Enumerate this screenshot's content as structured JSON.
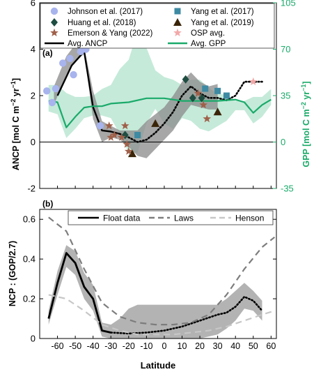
{
  "chart_data": [
    {
      "panel": "(a)",
      "type": "line",
      "ylabel": "ANCP [mol C m⁻² yr⁻¹]",
      "ylabel_parts": {
        "base": "ANCP [mol C m",
        "exp1": "−2",
        "mid": " yr",
        "exp2": "−1",
        "end": "]"
      },
      "y2label": "GPP [mol C m⁻² yr⁻¹]",
      "y2label_parts": {
        "base": "GPP [mol C m",
        "exp1": "−2",
        "mid": " yr",
        "exp2": "−1",
        "end": "]"
      },
      "xlim": [
        -70,
        63
      ],
      "ylim": [
        -2,
        6
      ],
      "y2lim": [
        -35,
        105
      ],
      "yticks": [
        "-2",
        "0",
        "2",
        "4",
        "6"
      ],
      "y2ticks": [
        "-35",
        "0",
        "35",
        "70",
        "105"
      ],
      "grid": false,
      "legend": {
        "placement": "top",
        "entries": [
          {
            "label": "Johnson et al. (2017)",
            "marker": "circle",
            "color": "#a8b4ee"
          },
          {
            "label": "Yang et al. (2017)",
            "marker": "square",
            "color": "#3d8aa3"
          },
          {
            "label": "Huang et al. (2018)",
            "marker": "diamond",
            "color": "#1e4d41"
          },
          {
            "label": "Yang et al. (2019)",
            "marker": "triangle",
            "color": "#3a2408"
          },
          {
            "label": "Emerson & Yang (2022)",
            "marker": "star",
            "color": "#a0604a"
          },
          {
            "label": "OSP avg.",
            "marker": "star",
            "color": "#f2a8a8"
          },
          {
            "label": "Avg. ANCP",
            "marker": "line",
            "color": "#000000"
          },
          {
            "label": "Avg. GPP",
            "marker": "line",
            "color": "#1aaa6a"
          }
        ]
      },
      "series": [
        {
          "name": "Johnson et al. (2017)",
          "marker": "circle",
          "color": "#a8b4ee",
          "points": [
            [
              -66,
              2.2
            ],
            [
              -63,
              1.7
            ],
            [
              -61,
              2.3
            ],
            [
              -57,
              3.4
            ],
            [
              -53,
              3.6
            ],
            [
              -51,
              2.9
            ],
            [
              -47,
              3.9
            ],
            [
              -44,
              4.0
            ],
            [
              -36,
              0.7
            ]
          ]
        },
        {
          "name": "Yang et al. (2017)",
          "marker": "square",
          "color": "#3d8aa3",
          "points": [
            [
              -15,
              0.3
            ],
            [
              23,
              2.3
            ],
            [
              30,
              2.2
            ],
            [
              35,
              2.0
            ]
          ]
        },
        {
          "name": "Huang et al. (2018)",
          "marker": "diamond",
          "color": "#1e4d41",
          "points": [
            [
              -22,
              0.3
            ],
            [
              12,
              2.7
            ],
            [
              16,
              1.9
            ],
            [
              21,
              1.9
            ]
          ]
        },
        {
          "name": "Yang et al. (2019)",
          "marker": "triangle",
          "color": "#3a2408",
          "points": [
            [
              -18,
              -0.5
            ],
            [
              -5,
              0.8
            ],
            [
              30,
              1.3
            ]
          ]
        },
        {
          "name": "Emerson & Yang (2022)",
          "marker": "star",
          "color": "#a0604a",
          "points": [
            [
              -31,
              0.7
            ],
            [
              -30,
              0.2
            ],
            [
              -28,
              0.3
            ],
            [
              -24,
              0.2
            ],
            [
              -22,
              0.7
            ],
            [
              -21,
              -0.1
            ],
            [
              -20,
              -0.4
            ],
            [
              19,
              2.1
            ],
            [
              22,
              1.6
            ],
            [
              24,
              1.0
            ]
          ]
        },
        {
          "name": "OSP avg.",
          "marker": "star",
          "color": "#f2a8a8",
          "points": [
            [
              50,
              2.6
            ]
          ]
        },
        {
          "name": "Avg. ANCP",
          "marker": "line",
          "color": "#000000",
          "style": "solid",
          "points": [
            [
              -60,
              2.0
            ],
            [
              -52,
              3.3
            ],
            [
              -45,
              3.9
            ],
            [
              -40,
              1.5
            ],
            [
              -35,
              0.5
            ],
            [
              -30,
              0.45
            ],
            [
              -25,
              0.35
            ]
          ]
        },
        {
          "name": "Avg. ANCP",
          "marker": "line",
          "color": "#000000",
          "style": "dotted",
          "points": [
            [
              -25,
              0.35
            ],
            [
              -20,
              0.2
            ],
            [
              -15,
              0.0
            ],
            [
              -10,
              0.1
            ],
            [
              -5,
              0.4
            ],
            [
              0,
              0.8
            ],
            [
              5,
              1.3
            ],
            [
              10,
              2.0
            ],
            [
              15,
              2.4
            ],
            [
              20,
              2.1
            ],
            [
              25,
              1.9
            ],
            [
              30,
              1.9
            ],
            [
              35,
              1.8
            ],
            [
              40,
              2.0
            ],
            [
              45,
              2.6
            ],
            [
              55,
              2.6
            ]
          ]
        },
        {
          "name": "Avg. GPP",
          "marker": "line",
          "color": "#1aaa6a",
          "axis": "right",
          "points": [
            [
              -65,
              31
            ],
            [
              -60,
              30
            ],
            [
              -55,
              11
            ],
            [
              -50,
              19
            ],
            [
              -45,
              26
            ],
            [
              -40,
              27
            ],
            [
              -35,
              27
            ],
            [
              -30,
              29
            ],
            [
              -20,
              30
            ],
            [
              -10,
              33
            ],
            [
              0,
              33
            ],
            [
              10,
              31
            ],
            [
              20,
              31
            ],
            [
              30,
              31
            ],
            [
              40,
              32
            ],
            [
              45,
              30
            ],
            [
              50,
              22
            ],
            [
              55,
              28
            ],
            [
              60,
              32
            ]
          ]
        }
      ],
      "bands": [
        {
          "name": "GPP range",
          "axis": "right",
          "color": "#9fdcbf",
          "x": [
            -65,
            -60,
            -55,
            -50,
            -45,
            -40,
            -35,
            -30,
            -25,
            -20,
            -15,
            -10,
            -5,
            0,
            5,
            10,
            15,
            20,
            25,
            30,
            35,
            40,
            45,
            50,
            55,
            60
          ],
          "lower": [
            23,
            21,
            3,
            10,
            18,
            20,
            20,
            18,
            6,
            -8,
            -8,
            14,
            25,
            14,
            10,
            18,
            16,
            10,
            8,
            12,
            16,
            24,
            24,
            14,
            19,
            28
          ],
          "upper": [
            43,
            43,
            37,
            34,
            34,
            35,
            40,
            43,
            55,
            62,
            84,
            71,
            54,
            49,
            47,
            43,
            47,
            47,
            41,
            36,
            36,
            31,
            31,
            34,
            34,
            40
          ]
        },
        {
          "name": "ANCP range (gray)",
          "axis": "left",
          "color": "#8a8a8a",
          "x": [
            -62,
            -55,
            -50,
            -45,
            -40,
            -35,
            -30,
            -25,
            -20,
            -15,
            -10,
            -5,
            0,
            5,
            10,
            15,
            20,
            25,
            30
          ],
          "lower": [
            1.6,
            2.9,
            3.5,
            3.8,
            1.0,
            0.0,
            0.2,
            0.1,
            -0.2,
            -0.6,
            -0.7,
            -0.3,
            0.1,
            0.5,
            1.1,
            1.6,
            1.5,
            1.4,
            1.4
          ],
          "upper": [
            2.4,
            3.7,
            4.2,
            4.1,
            2.2,
            0.9,
            0.7,
            0.5,
            0.5,
            0.5,
            0.9,
            1.2,
            1.5,
            2.0,
            2.6,
            3.0,
            2.6,
            2.4,
            2.5
          ]
        }
      ]
    },
    {
      "panel": "(b)",
      "type": "line",
      "xlabel": "Latitude",
      "ylabel": "NCP : (GOP/2.7)",
      "xlim": [
        -70,
        63
      ],
      "ylim": [
        0,
        0.65
      ],
      "xticks": [
        "-60",
        "-50",
        "-40",
        "-30",
        "-20",
        "-10",
        "0",
        "10",
        "20",
        "30",
        "40",
        "50",
        "60"
      ],
      "yticks": [
        "0",
        "0.2",
        "0.4",
        "0.6"
      ],
      "grid": false,
      "legend": {
        "placement": "top",
        "entries": [
          {
            "label": "Float data",
            "color": "#000000",
            "style": "solid"
          },
          {
            "label": "Laws",
            "color": "#7d7d7d",
            "style": "dashed"
          },
          {
            "label": "Henson",
            "color": "#c7c7c7",
            "style": "dashed"
          }
        ]
      },
      "series": [
        {
          "name": "Float data",
          "color": "#000000",
          "style": "solid",
          "x": [
            -65,
            -60,
            -55,
            -50,
            -45,
            -40,
            -35,
            -30
          ],
          "y": [
            0.1,
            0.28,
            0.43,
            0.38,
            0.26,
            0.2,
            0.04,
            0.03
          ]
        },
        {
          "name": "Float data",
          "color": "#000000",
          "style": "dotted",
          "x": [
            -30,
            -20,
            -10,
            0,
            10,
            20,
            30,
            35,
            40,
            45,
            50,
            55
          ],
          "y": [
            0.03,
            0.025,
            0.03,
            0.04,
            0.06,
            0.09,
            0.12,
            0.13,
            0.16,
            0.21,
            0.19,
            0.14
          ]
        },
        {
          "name": "Laws",
          "color": "#7d7d7d",
          "style": "dashed",
          "x": [
            -65,
            -55,
            -45,
            -35,
            -25,
            -15,
            -5,
            5,
            15,
            25,
            35,
            45,
            55,
            62
          ],
          "y": [
            0.61,
            0.54,
            0.35,
            0.18,
            0.11,
            0.08,
            0.07,
            0.07,
            0.08,
            0.12,
            0.22,
            0.35,
            0.46,
            0.51
          ]
        },
        {
          "name": "Henson",
          "color": "#c7c7c7",
          "style": "dashed",
          "x": [
            -65,
            -55,
            -45,
            -35,
            -25,
            -15,
            -5,
            5,
            15,
            25,
            35,
            45,
            55,
            62
          ],
          "y": [
            0.22,
            0.2,
            0.14,
            0.07,
            0.04,
            0.02,
            0.02,
            0.02,
            0.03,
            0.04,
            0.06,
            0.09,
            0.12,
            0.14
          ]
        }
      ],
      "bands": [
        {
          "name": "Float data range",
          "color": "#9a9a9a",
          "x": [
            -65,
            -60,
            -55,
            -50,
            -45,
            -40,
            -35,
            -30,
            -25,
            -20,
            -15,
            -10,
            0,
            10,
            20,
            30,
            35,
            40,
            45,
            50,
            55
          ],
          "lower": [
            0.07,
            0.22,
            0.36,
            0.32,
            0.2,
            0.14,
            0.01,
            0.0,
            0.0,
            0.0,
            0.0,
            0.0,
            0.0,
            0.0,
            0.0,
            0.02,
            0.05,
            0.09,
            0.15,
            0.14,
            0.09
          ],
          "upper": [
            0.14,
            0.34,
            0.47,
            0.44,
            0.33,
            0.27,
            0.08,
            0.07,
            0.1,
            0.15,
            0.17,
            0.17,
            0.17,
            0.17,
            0.17,
            0.17,
            0.2,
            0.24,
            0.28,
            0.24,
            0.19
          ]
        }
      ]
    }
  ]
}
